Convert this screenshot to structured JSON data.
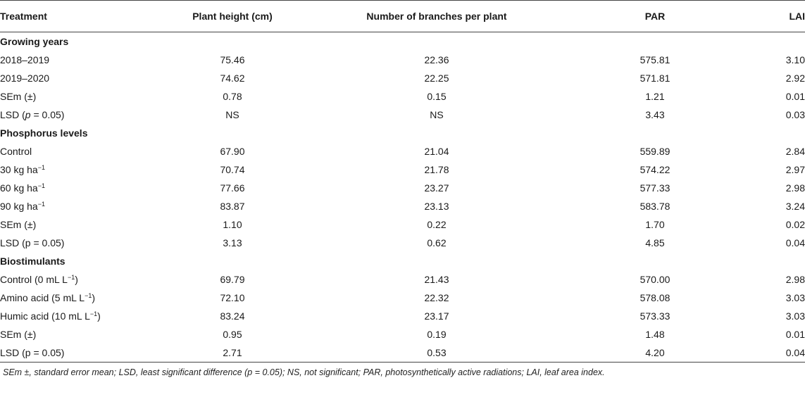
{
  "columns": [
    "Treatment",
    "Plant height (cm)",
    "Number of branches per plant",
    "PAR",
    "LAI"
  ],
  "groups": [
    {
      "title": "Growing years",
      "rows": [
        {
          "label": "2018–2019",
          "values": [
            "75.46",
            "22.36",
            "575.81",
            "3.10"
          ]
        },
        {
          "label": "2019–2020",
          "values": [
            "74.62",
            "22.25",
            "571.81",
            "2.92"
          ]
        },
        {
          "label": "SEm (±)",
          "values": [
            "0.78",
            "0.15",
            "1.21",
            "0.01"
          ]
        },
        {
          "label_pre": "LSD (",
          "label_p": "p",
          "label_post": " = 0.05)",
          "values": [
            "NS",
            "NS",
            "3.43",
            "0.03"
          ]
        }
      ]
    },
    {
      "title": "Phosphorus levels",
      "rows": [
        {
          "label": "Control",
          "values": [
            "67.90",
            "21.04",
            "559.89",
            "2.84"
          ]
        },
        {
          "label": "30 kg ha",
          "sup": "−1",
          "values": [
            "70.74",
            "21.78",
            "574.22",
            "2.97"
          ]
        },
        {
          "label": "60 kg ha",
          "sup": "−1",
          "values": [
            "77.66",
            "23.27",
            "577.33",
            "2.98"
          ]
        },
        {
          "label": "90 kg ha",
          "sup": "−1",
          "values": [
            "83.87",
            "23.13",
            "583.78",
            "3.24"
          ]
        },
        {
          "label": "SEm (±)",
          "values": [
            "1.10",
            "0.22",
            "1.70",
            "0.02"
          ]
        },
        {
          "label": "LSD (p = 0.05)",
          "values": [
            "3.13",
            "0.62",
            "4.85",
            "0.04"
          ]
        }
      ]
    },
    {
      "title": "Biostimulants",
      "rows": [
        {
          "label": "Control (0 mL L",
          "sup": "−1",
          "label_post": ")",
          "values": [
            "69.79",
            "21.43",
            "570.00",
            "2.98"
          ]
        },
        {
          "label": "Amino acid (5 mL L",
          "sup": "−1",
          "label_post": ")",
          "values": [
            "72.10",
            "22.32",
            "578.08",
            "3.03"
          ]
        },
        {
          "label": "Humic acid (10 mL L",
          "sup": "−1",
          "label_post": ")",
          "values": [
            "83.24",
            "23.17",
            "573.33",
            "3.03"
          ]
        },
        {
          "label": "SEm (±)",
          "values": [
            "0.95",
            "0.19",
            "1.48",
            "0.01"
          ]
        },
        {
          "label": "LSD (p = 0.05)",
          "values": [
            "2.71",
            "0.53",
            "4.20",
            "0.04"
          ]
        }
      ]
    }
  ],
  "footnote": "SEm ±, standard error mean; LSD, least significant difference (p = 0.05); NS, not significant; PAR, photosynthetically active radiations; LAI, leaf area index."
}
